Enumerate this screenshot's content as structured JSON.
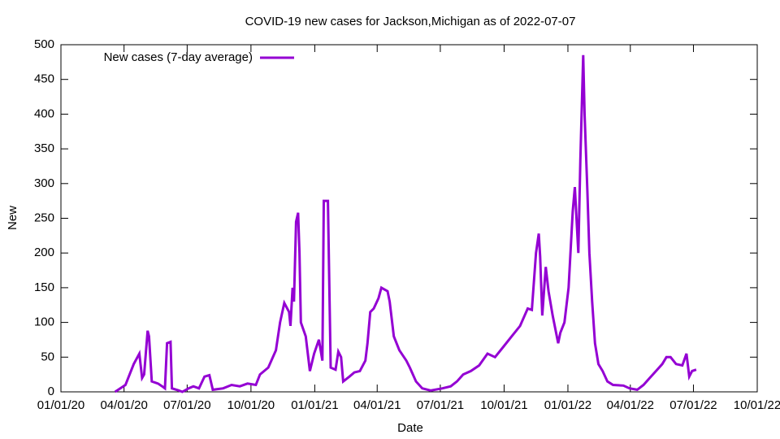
{
  "chart_data": {
    "type": "line",
    "title": "COVID-19 new cases for Jackson,Michigan as of 2022-07-07",
    "x_label": "Date",
    "y_label": "New",
    "legend_position": "top-left",
    "xlim": [
      "2020-01-01",
      "2022-10-01"
    ],
    "xticks": [
      {
        "value": "2020-01-01",
        "label": "01/01/20"
      },
      {
        "value": "2020-04-01",
        "label": "04/01/20"
      },
      {
        "value": "2020-07-01",
        "label": "07/01/20"
      },
      {
        "value": "2020-10-01",
        "label": "10/01/20"
      },
      {
        "value": "2021-01-01",
        "label": "01/01/21"
      },
      {
        "value": "2021-04-01",
        "label": "04/01/21"
      },
      {
        "value": "2021-07-01",
        "label": "07/01/21"
      },
      {
        "value": "2021-10-01",
        "label": "10/01/21"
      },
      {
        "value": "2022-01-01",
        "label": "01/01/22"
      },
      {
        "value": "2022-04-01",
        "label": "04/01/22"
      },
      {
        "value": "2022-07-01",
        "label": "07/01/22"
      },
      {
        "value": "2022-10-01",
        "label": "10/01/22"
      }
    ],
    "ylim": [
      0,
      500
    ],
    "yticks": [
      0,
      50,
      100,
      150,
      200,
      250,
      300,
      350,
      400,
      450,
      500
    ],
    "x": [
      "2020-03-19",
      "2020-04-03",
      "2020-04-15",
      "2020-04-23",
      "2020-04-27",
      "2020-04-30",
      "2020-05-05",
      "2020-05-07",
      "2020-05-11",
      "2020-05-20",
      "2020-05-26",
      "2020-05-30",
      "2020-06-02",
      "2020-06-07",
      "2020-06-09",
      "2020-06-19",
      "2020-06-24",
      "2020-07-03",
      "2020-07-10",
      "2020-07-18",
      "2020-07-26",
      "2020-08-02",
      "2020-08-07",
      "2020-08-22",
      "2020-09-03",
      "2020-09-15",
      "2020-09-26",
      "2020-10-08",
      "2020-10-14",
      "2020-10-26",
      "2020-11-06",
      "2020-11-12",
      "2020-11-18",
      "2020-11-25",
      "2020-11-27",
      "2020-11-30",
      "2020-12-02",
      "2020-12-05",
      "2020-12-08",
      "2020-12-10",
      "2020-12-12",
      "2020-12-19",
      "2020-12-25",
      "2020-12-31",
      "2021-01-07",
      "2021-01-12",
      "2021-01-14",
      "2021-01-20",
      "2021-01-24",
      "2021-01-31",
      "2021-02-04",
      "2021-02-08",
      "2021-02-11",
      "2021-02-20",
      "2021-02-27",
      "2021-03-07",
      "2021-03-15",
      "2021-03-18",
      "2021-03-22",
      "2021-03-27",
      "2021-04-03",
      "2021-04-07",
      "2021-04-16",
      "2021-04-19",
      "2021-04-25",
      "2021-05-03",
      "2021-05-13",
      "2021-05-18",
      "2021-05-27",
      "2021-06-05",
      "2021-06-17",
      "2021-07-04",
      "2021-07-16",
      "2021-07-25",
      "2021-08-03",
      "2021-08-14",
      "2021-08-26",
      "2021-09-07",
      "2021-09-18",
      "2021-09-30",
      "2021-10-12",
      "2021-10-24",
      "2021-11-04",
      "2021-11-10",
      "2021-11-16",
      "2021-11-20",
      "2021-11-22",
      "2021-11-25",
      "2021-11-30",
      "2021-12-04",
      "2021-12-10",
      "2021-12-18",
      "2021-12-21",
      "2021-12-27",
      "2022-01-02",
      "2022-01-08",
      "2022-01-11",
      "2022-01-16",
      "2022-01-19",
      "2022-01-23",
      "2022-01-25",
      "2022-01-29",
      "2022-02-01",
      "2022-02-05",
      "2022-02-09",
      "2022-02-14",
      "2022-02-20",
      "2022-02-27",
      "2022-03-07",
      "2022-03-22",
      "2022-03-31",
      "2022-04-11",
      "2022-04-20",
      "2022-04-29",
      "2022-05-08",
      "2022-05-17",
      "2022-05-23",
      "2022-05-29",
      "2022-06-06",
      "2022-06-15",
      "2022-06-21",
      "2022-06-25",
      "2022-06-29",
      "2022-07-05"
    ],
    "series": [
      {
        "name": "New cases (7-day average)",
        "color": "#9400d3",
        "values": [
          0,
          10,
          40,
          55,
          20,
          25,
          88,
          80,
          15,
          12,
          8,
          5,
          70,
          72,
          5,
          2,
          0,
          5,
          8,
          5,
          22,
          24,
          3,
          5,
          10,
          8,
          12,
          10,
          25,
          35,
          60,
          100,
          128,
          115,
          95,
          150,
          130,
          245,
          258,
          200,
          100,
          80,
          30,
          55,
          75,
          45,
          275,
          275,
          35,
          32,
          58,
          50,
          15,
          22,
          28,
          30,
          45,
          70,
          115,
          120,
          135,
          150,
          145,
          130,
          80,
          60,
          45,
          35,
          15,
          5,
          2,
          5,
          8,
          15,
          25,
          30,
          38,
          55,
          50,
          65,
          80,
          95,
          120,
          118,
          200,
          228,
          195,
          110,
          180,
          145,
          110,
          70,
          85,
          100,
          150,
          260,
          295,
          200,
          335,
          485,
          400,
          290,
          200,
          130,
          70,
          40,
          30,
          15,
          10,
          9,
          5,
          3,
          10,
          20,
          30,
          40,
          50,
          50,
          40,
          38,
          55,
          22,
          30,
          32
        ]
      }
    ]
  }
}
